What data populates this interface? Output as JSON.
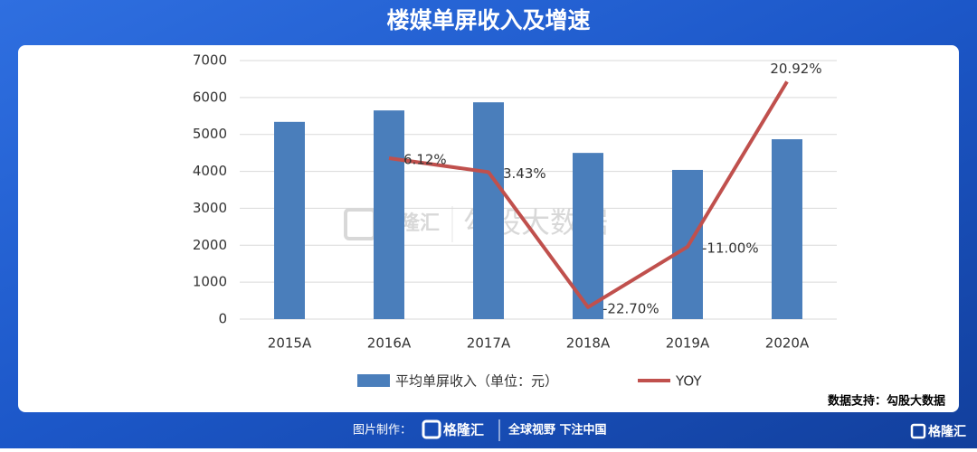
{
  "chart_data": {
    "type": "bar",
    "title": "楼媒单屏收入及增速",
    "categories": [
      "2015A",
      "2016A",
      "2017A",
      "2018A",
      "2019A",
      "2020A"
    ],
    "series": [
      {
        "name": "平均单屏收入（单位：元）",
        "type": "bar",
        "color": "#4a7ebb",
        "values": [
          5340,
          5650,
          5870,
          4500,
          4040,
          4870
        ]
      },
      {
        "name": "YOY",
        "type": "line",
        "axis": "y2",
        "color": "#c0504d",
        "values": [
          null,
          6.12,
          3.43,
          -22.7,
          -11.0,
          20.92
        ],
        "value_labels": [
          null,
          "6.12%",
          "3.43%",
          "-22.70%",
          "-11.00%",
          "20.92%"
        ]
      }
    ],
    "ylim": [
      0,
      7000
    ],
    "yticks": [
      0,
      1000,
      2000,
      3000,
      4000,
      5000,
      6000,
      7000
    ],
    "y2lim": [
      -25,
      25
    ],
    "grid": true,
    "legend": "bottom",
    "source": "数据支持：勾股大数据"
  },
  "watermark": {
    "logo": "格隆汇",
    "text": "勾股大数据"
  },
  "footer": {
    "made_by": "图片制作：",
    "logo": "格隆汇",
    "slogan": "全球视野 下注中国",
    "corner_logo": "格隆汇"
  }
}
